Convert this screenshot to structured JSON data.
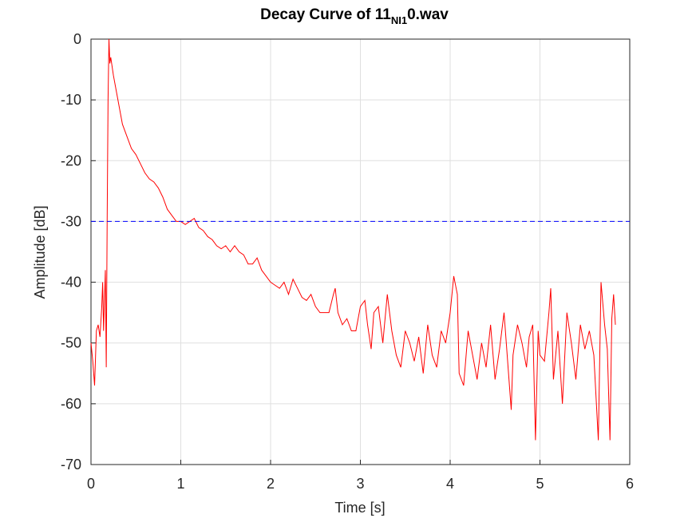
{
  "chart_data": {
    "type": "line",
    "title": "Decay Curve of 11",
    "title_subscript": "NI1",
    "title_suffix": "0.wav",
    "xlabel": "Time [s]",
    "ylabel": "Amplitude [dB]",
    "xlim": [
      0,
      6
    ],
    "ylim": [
      -70,
      0
    ],
    "xticks": [
      0,
      1,
      2,
      3,
      4,
      5,
      6
    ],
    "yticks": [
      -70,
      -60,
      -50,
      -40,
      -30,
      -20,
      -10,
      0
    ],
    "grid": true,
    "series": [
      {
        "color": "#ff0000",
        "x": [
          0,
          0.02,
          0.04,
          0.06,
          0.08,
          0.1,
          0.12,
          0.13,
          0.14,
          0.16,
          0.17,
          0.18,
          0.19,
          0.2,
          0.21,
          0.22,
          0.25,
          0.3,
          0.35,
          0.4,
          0.45,
          0.5,
          0.55,
          0.6,
          0.65,
          0.7,
          0.75,
          0.8,
          0.85,
          0.9,
          0.95,
          1.0,
          1.05,
          1.1,
          1.15,
          1.2,
          1.25,
          1.3,
          1.35,
          1.4,
          1.45,
          1.5,
          1.55,
          1.6,
          1.65,
          1.7,
          1.75,
          1.8,
          1.85,
          1.9,
          1.95,
          2.0,
          2.05,
          2.1,
          2.15,
          2.2,
          2.25,
          2.3,
          2.35,
          2.4,
          2.45,
          2.5,
          2.55,
          2.6,
          2.65,
          2.7,
          2.72,
          2.75,
          2.8,
          2.85,
          2.9,
          2.95,
          3.0,
          3.05,
          3.08,
          3.12,
          3.15,
          3.2,
          3.25,
          3.3,
          3.35,
          3.4,
          3.45,
          3.5,
          3.55,
          3.6,
          3.65,
          3.7,
          3.75,
          3.8,
          3.85,
          3.9,
          3.95,
          4.0,
          4.04,
          4.08,
          4.1,
          4.15,
          4.2,
          4.25,
          4.3,
          4.35,
          4.4,
          4.45,
          4.5,
          4.55,
          4.6,
          4.65,
          4.68,
          4.7,
          4.75,
          4.8,
          4.85,
          4.88,
          4.92,
          4.95,
          4.98,
          5.0,
          5.05,
          5.1,
          5.12,
          5.15,
          5.2,
          5.25,
          5.3,
          5.35,
          5.4,
          5.45,
          5.5,
          5.55,
          5.6,
          5.65,
          5.68,
          5.72,
          5.75,
          5.78,
          5.8,
          5.82,
          5.84
        ],
        "values": [
          -50,
          -53,
          -57,
          -48,
          -47,
          -49,
          -44,
          -40,
          -48,
          -38,
          -54,
          -30,
          -10,
          0,
          -4,
          -3,
          -6,
          -10,
          -14,
          -16,
          -18,
          -19,
          -20.5,
          -22,
          -23,
          -23.5,
          -24.5,
          -26,
          -28,
          -29,
          -30,
          -30,
          -30.5,
          -30,
          -29.5,
          -31,
          -31.5,
          -32.5,
          -33,
          -34,
          -34.5,
          -34,
          -35,
          -34,
          -35,
          -35.5,
          -37,
          -37,
          -36,
          -38,
          -39,
          -40,
          -40.5,
          -41,
          -40,
          -42,
          -39.5,
          -41,
          -42.5,
          -43,
          -42,
          -44,
          -45,
          -45,
          -45,
          -42,
          -41,
          -45,
          -47,
          -46,
          -48,
          -48,
          -44,
          -43,
          -47,
          -51,
          -45,
          -44,
          -50,
          -42,
          -48,
          -52,
          -54,
          -48,
          -50,
          -53,
          -49,
          -55,
          -47,
          -52,
          -54,
          -48,
          -50,
          -45,
          -39,
          -42,
          -55,
          -57,
          -48,
          -52,
          -56,
          -50,
          -54,
          -47,
          -56,
          -51,
          -45,
          -55,
          -61,
          -52,
          -47,
          -50,
          -54,
          -49,
          -47,
          -66,
          -48,
          -52,
          -53,
          -45,
          -41,
          -56,
          -48,
          -60,
          -45,
          -50,
          -56,
          -47,
          -51,
          -48,
          -52,
          -66,
          -40,
          -47,
          -51,
          -66,
          -46,
          -42,
          -47
        ]
      },
      {
        "color": "#0000ff",
        "dashed": true,
        "x": [
          0,
          6
        ],
        "values": [
          -30,
          -30
        ]
      }
    ]
  }
}
